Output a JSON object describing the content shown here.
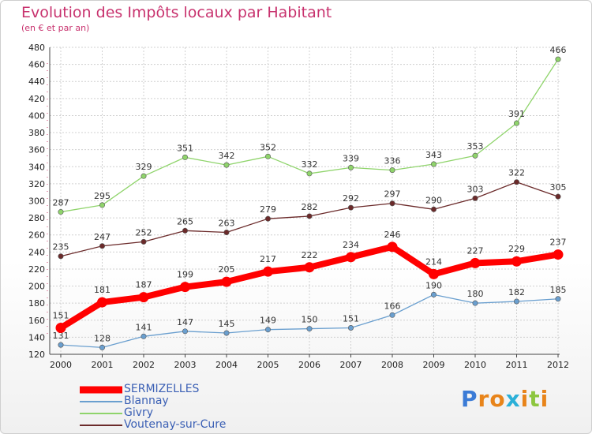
{
  "logo_text": "Proxiti",
  "chart_data": {
    "type": "line",
    "title": "Evolution des Impôts locaux par Habitant",
    "subtitle": "(en € et par an)",
    "xlabel": "",
    "ylabel": "",
    "categories": [
      "2000",
      "2001",
      "2002",
      "2003",
      "2004",
      "2005",
      "2006",
      "2007",
      "2008",
      "2009",
      "2010",
      "2011",
      "2012"
    ],
    "ylim": [
      120,
      480
    ],
    "yticks": [
      120,
      140,
      160,
      180,
      200,
      220,
      240,
      260,
      280,
      300,
      320,
      340,
      360,
      380,
      400,
      420,
      440,
      460,
      480
    ],
    "grid": true,
    "legend_position": "bottom-left",
    "series": [
      {
        "name": "SERMIZELLES",
        "color": "#ff0000",
        "values": [
          151,
          181,
          187,
          199,
          205,
          217,
          222,
          234,
          246,
          214,
          227,
          229,
          237
        ]
      },
      {
        "name": "Blannay",
        "color": "#6a9fcf",
        "values": [
          131,
          128,
          141,
          147,
          145,
          149,
          150,
          151,
          166,
          190,
          180,
          182,
          185
        ]
      },
      {
        "name": "Givry",
        "color": "#8fd46b",
        "values": [
          287,
          295,
          329,
          351,
          342,
          352,
          332,
          339,
          336,
          343,
          353,
          391,
          466
        ]
      },
      {
        "name": "Voutenay-sur-Cure",
        "color": "#6b2a2a",
        "values": [
          235,
          247,
          252,
          265,
          263,
          279,
          282,
          292,
          297,
          290,
          303,
          322,
          305
        ]
      }
    ]
  }
}
